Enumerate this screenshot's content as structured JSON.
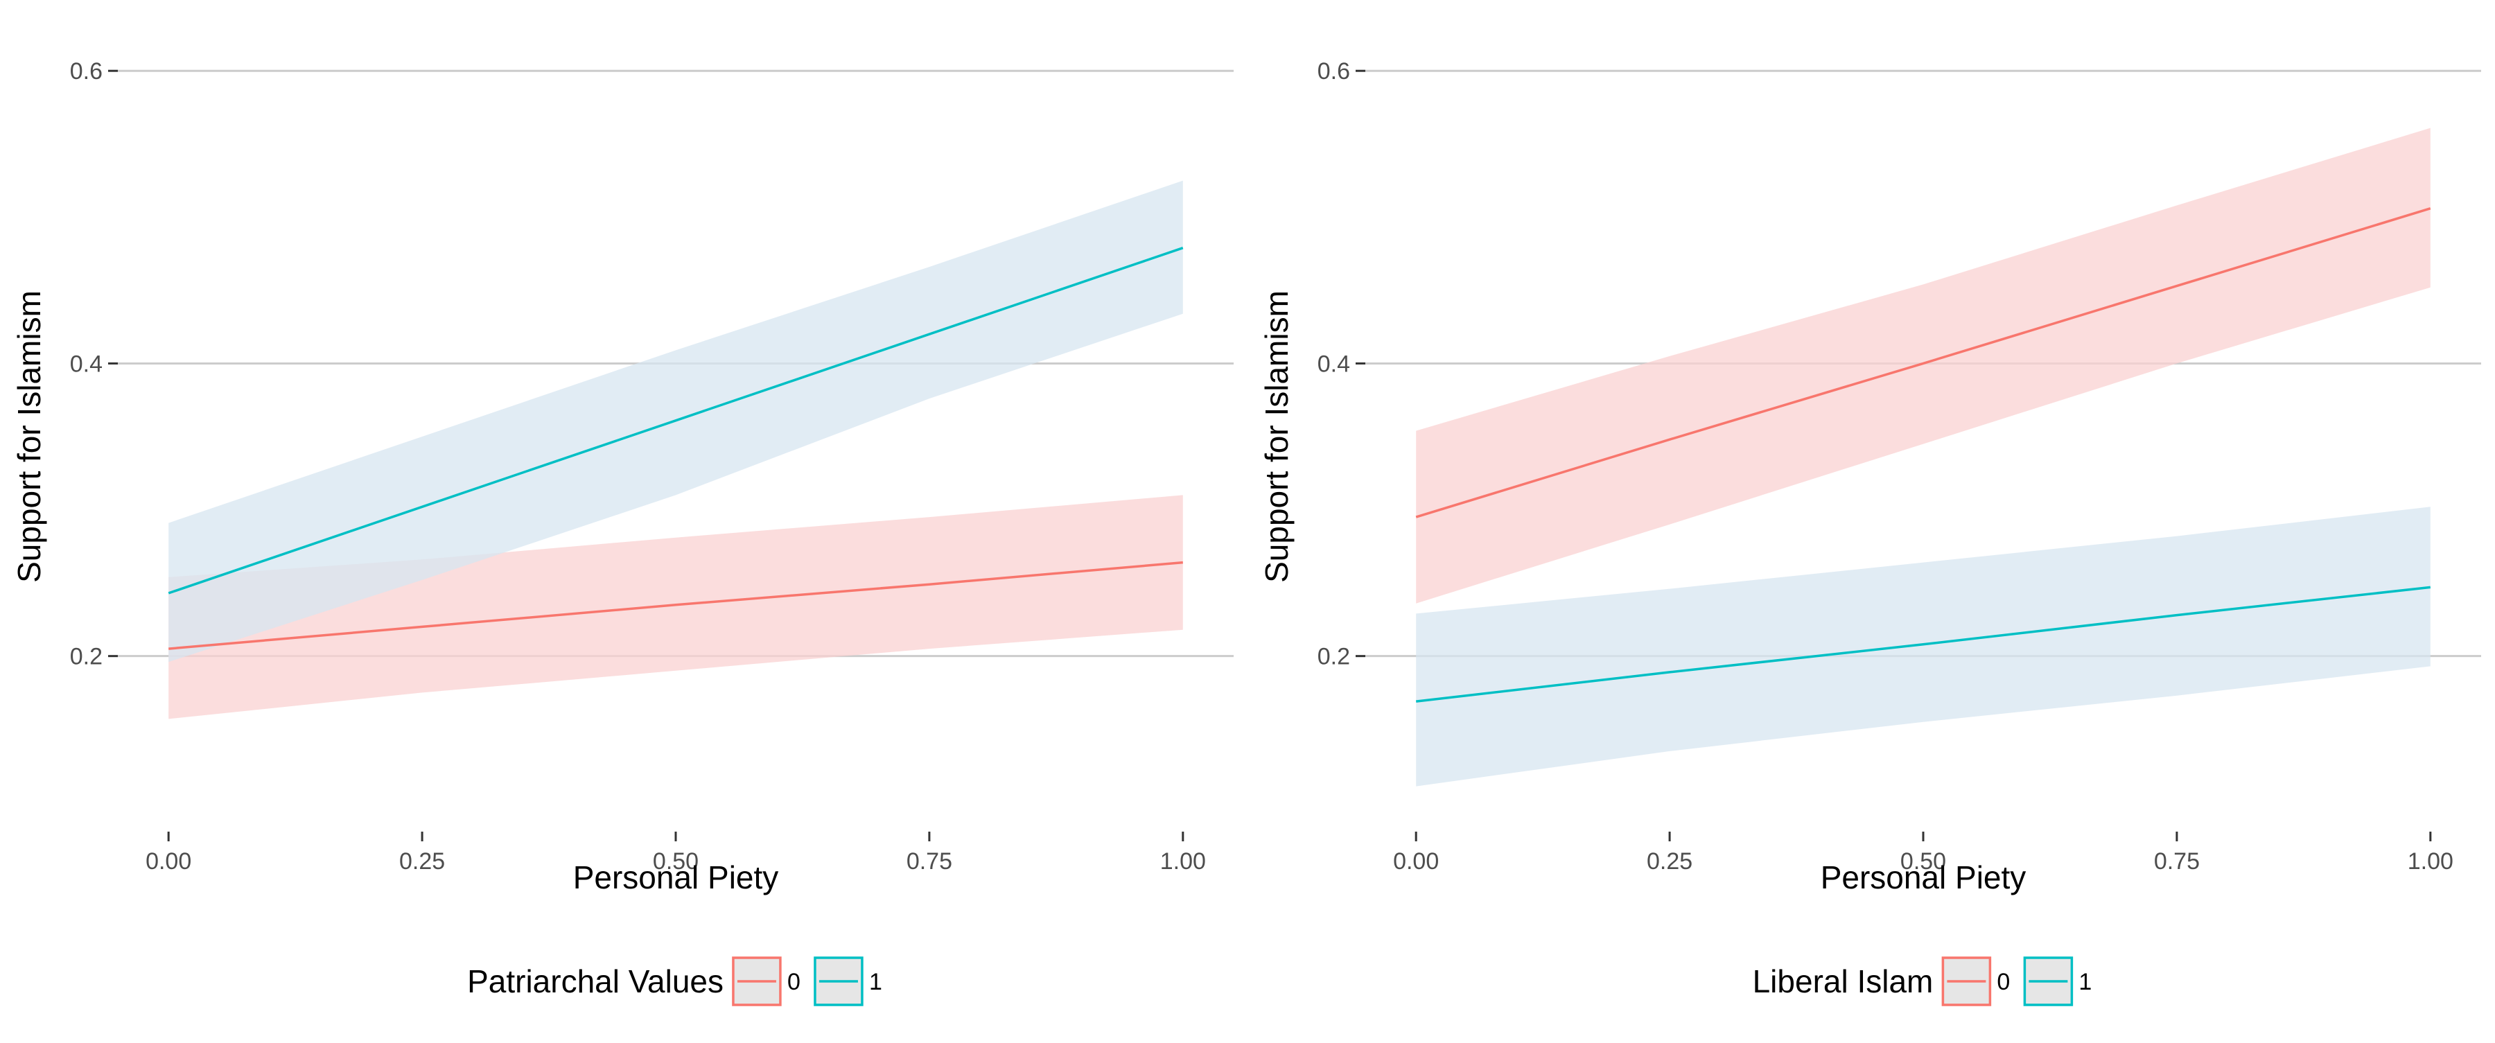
{
  "chart_data": [
    {
      "type": "line",
      "title": "",
      "xlabel": "Personal Piety",
      "ylabel": "Support for Islamism",
      "xlim": [
        -0.05,
        1.05
      ],
      "ylim": [
        0.08,
        0.62
      ],
      "x_ticks": [
        0.0,
        0.25,
        0.5,
        0.75,
        1.0
      ],
      "x_tick_labels": [
        "0.00",
        "0.25",
        "0.50",
        "0.75",
        "1.00"
      ],
      "y_ticks": [
        0.2,
        0.4,
        0.6
      ],
      "y_tick_labels": [
        "0.2",
        "0.4",
        "0.6"
      ],
      "grid": "horizontal major lines",
      "legend": {
        "title": "Patriarchal Values",
        "position": "bottom",
        "entries": [
          "0",
          "1"
        ]
      },
      "series": [
        {
          "name": "0",
          "color": "#F8766D",
          "ribbon_color": "#F9D2D2",
          "x": [
            0.0,
            0.25,
            0.5,
            0.75,
            1.0
          ],
          "y": [
            0.205,
            0.22,
            0.235,
            0.249,
            0.264
          ],
          "lower": [
            0.157,
            0.175,
            0.19,
            0.205,
            0.218
          ],
          "upper": [
            0.254,
            0.266,
            0.281,
            0.295,
            0.31
          ]
        },
        {
          "name": "1",
          "color": "#00BFC4",
          "ribbon_color": "#D7E5F0",
          "x": [
            0.0,
            0.25,
            0.5,
            0.75,
            1.0
          ],
          "y": [
            0.243,
            0.302,
            0.361,
            0.42,
            0.479
          ],
          "lower": [
            0.196,
            0.252,
            0.31,
            0.376,
            0.434
          ],
          "upper": [
            0.291,
            0.35,
            0.409,
            0.466,
            0.525
          ]
        }
      ]
    },
    {
      "type": "line",
      "title": "",
      "xlabel": "Personal Piety",
      "ylabel": "Support for Islamism",
      "xlim": [
        -0.05,
        1.05
      ],
      "ylim": [
        0.08,
        0.62
      ],
      "x_ticks": [
        0.0,
        0.25,
        0.5,
        0.75,
        1.0
      ],
      "x_tick_labels": [
        "0.00",
        "0.25",
        "0.50",
        "0.75",
        "1.00"
      ],
      "y_ticks": [
        0.2,
        0.4,
        0.6
      ],
      "y_tick_labels": [
        "0.2",
        "0.4",
        "0.6"
      ],
      "grid": "horizontal major lines",
      "legend": {
        "title": "Liberal Islam",
        "position": "bottom",
        "entries": [
          "0",
          "1"
        ]
      },
      "series": [
        {
          "name": "0",
          "color": "#F8766D",
          "ribbon_color": "#F9D2D2",
          "x": [
            0.0,
            0.25,
            0.5,
            0.75,
            1.0
          ],
          "y": [
            0.295,
            0.348,
            0.4,
            0.453,
            0.506
          ],
          "lower": [
            0.236,
            0.29,
            0.345,
            0.4,
            0.452
          ],
          "upper": [
            0.354,
            0.405,
            0.454,
            0.508,
            0.561
          ]
        },
        {
          "name": "1",
          "color": "#00BFC4",
          "ribbon_color": "#D7E5F0",
          "x": [
            0.0,
            0.25,
            0.5,
            0.75,
            1.0
          ],
          "y": [
            0.169,
            0.189,
            0.208,
            0.228,
            0.247
          ],
          "lower": [
            0.111,
            0.135,
            0.155,
            0.173,
            0.193
          ],
          "upper": [
            0.229,
            0.246,
            0.264,
            0.282,
            0.302
          ]
        }
      ]
    }
  ]
}
